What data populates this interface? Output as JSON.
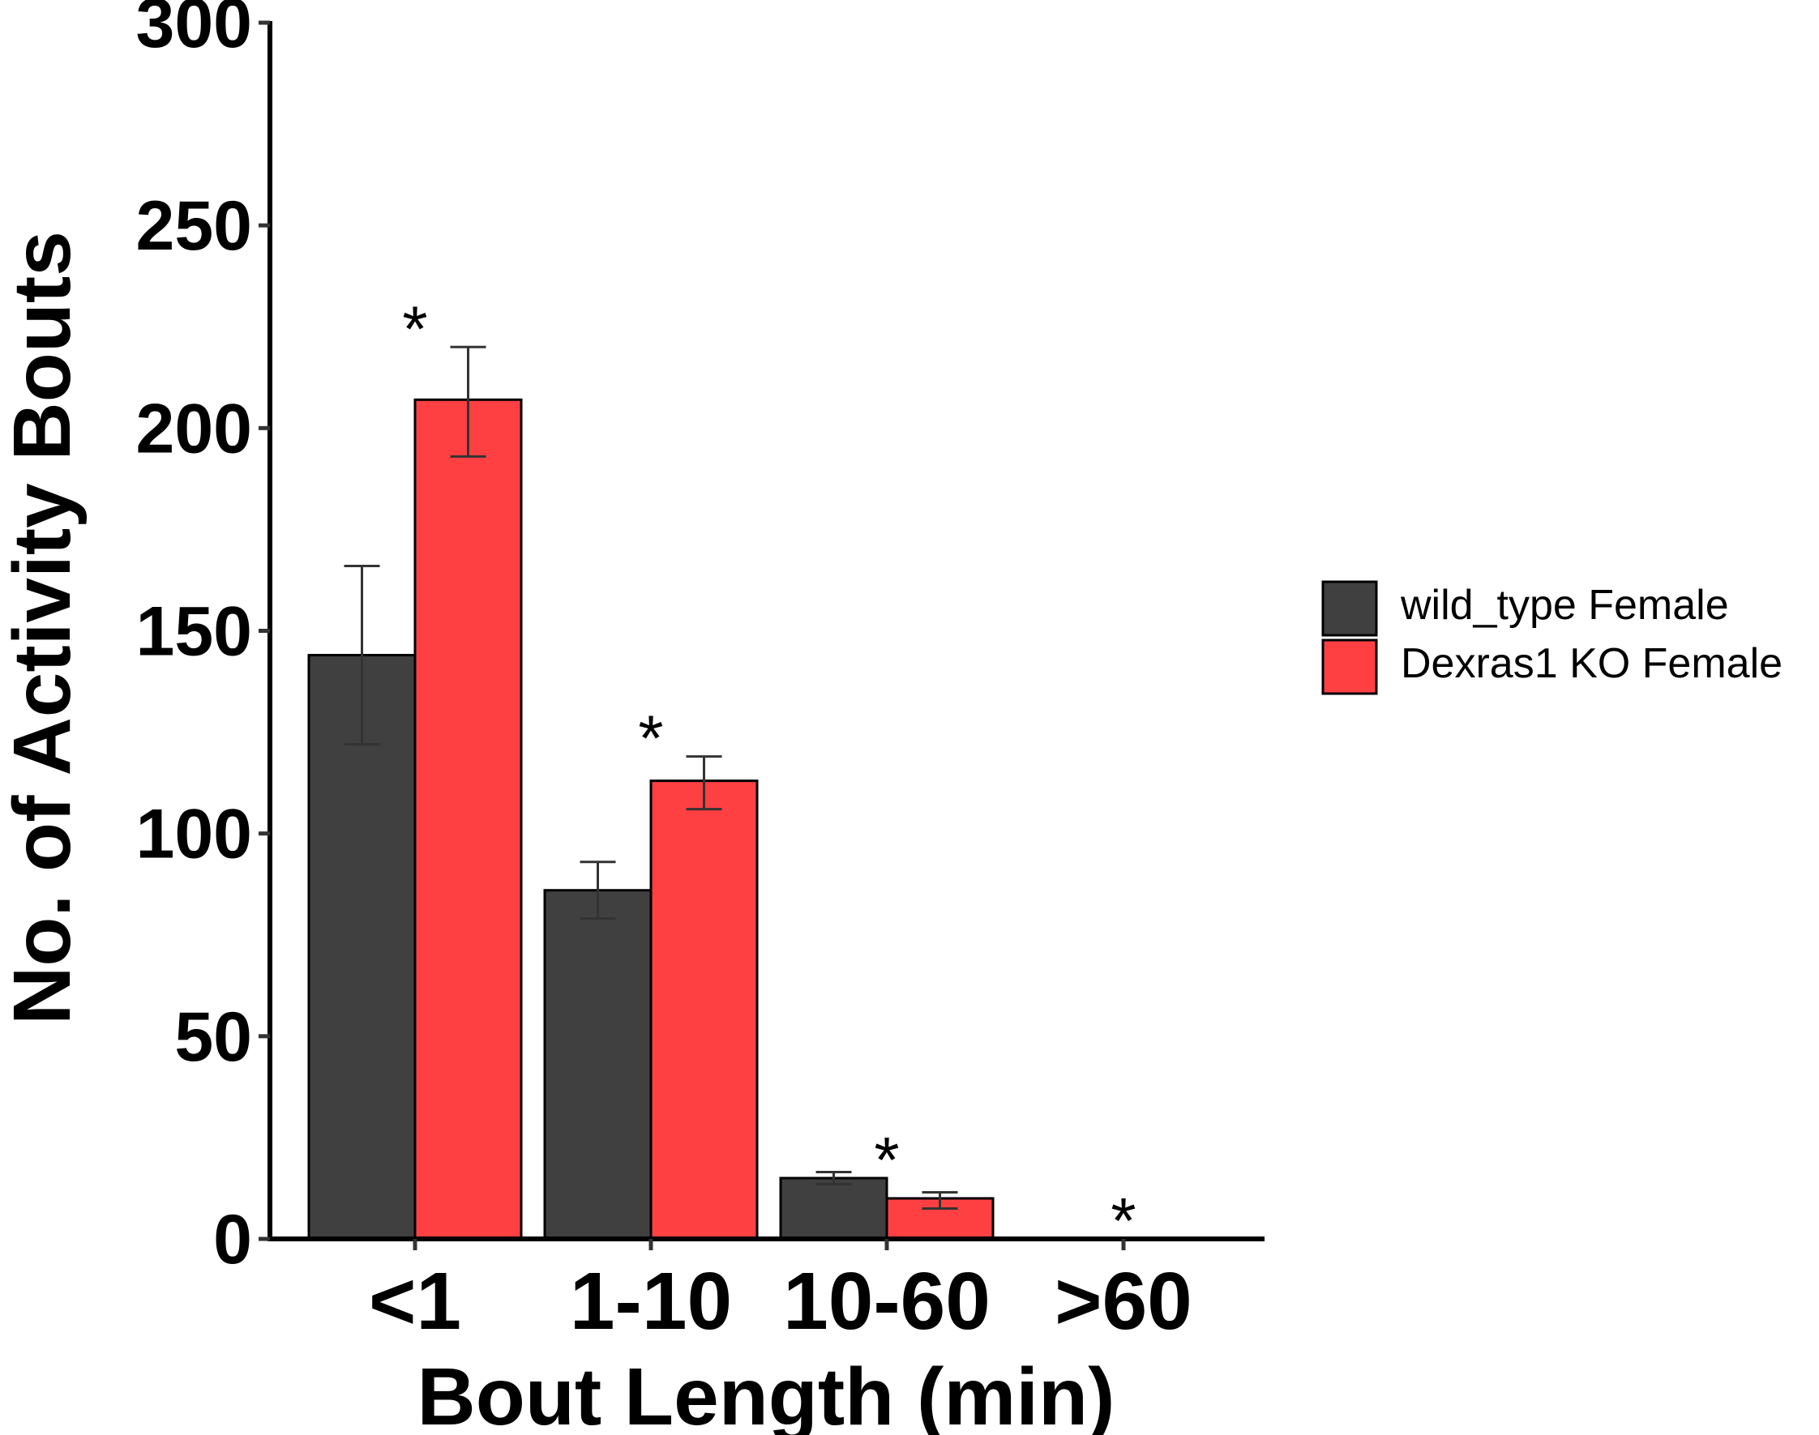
{
  "chart_data": {
    "type": "bar",
    "xlabel": "Bout Length (min)",
    "ylabel": "No. of Activity Bouts",
    "ylim": [
      0,
      300
    ],
    "yticks": [
      0,
      50,
      100,
      150,
      200,
      250,
      300
    ],
    "categories": [
      "<1",
      "1-10",
      "10-60",
      ">60"
    ],
    "series": [
      {
        "name": "wild_type Female",
        "color": "#404040",
        "values": [
          144,
          86,
          15,
          0
        ],
        "err_low": [
          122,
          79,
          13.5,
          0
        ],
        "err_high": [
          166,
          93,
          16.5,
          0
        ]
      },
      {
        "name": "Dexras1 KO Female",
        "color": "#ff4043",
        "values": [
          207,
          113,
          10,
          0
        ],
        "err_low": [
          193,
          106,
          7.5,
          0
        ],
        "err_high": [
          220,
          119,
          11.5,
          0
        ]
      }
    ],
    "annotations": [
      {
        "category": "<1",
        "text": "*",
        "y": 225
      },
      {
        "category": "1-10",
        "text": "*",
        "y": 124
      },
      {
        "category": "10-60",
        "text": "*",
        "y": 20
      },
      {
        "category": ">60",
        "text": "*",
        "y": 5
      }
    ],
    "legend": {
      "position": "right"
    },
    "grid": false
  }
}
